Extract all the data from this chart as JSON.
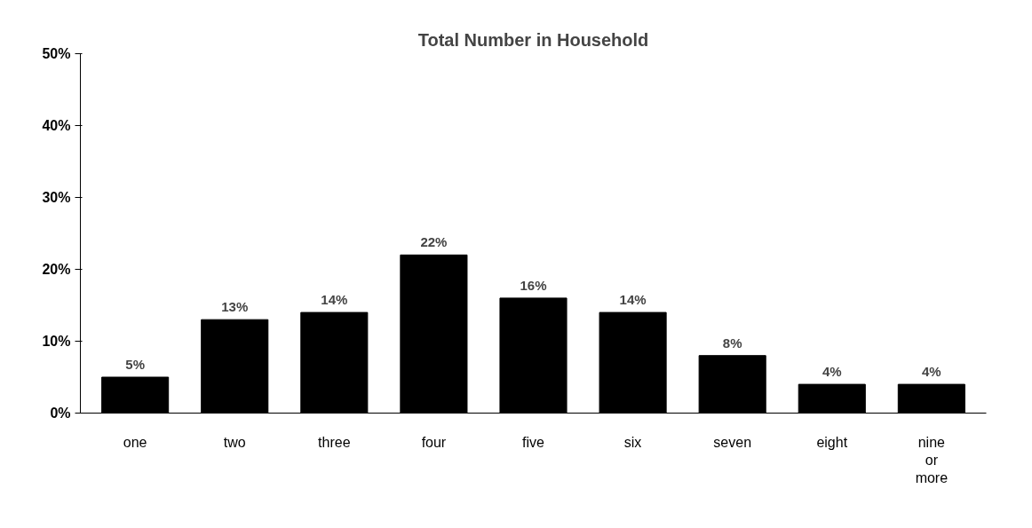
{
  "chart_data": {
    "type": "bar",
    "title": "Total Number in Household",
    "categories": [
      "one",
      "two",
      "three",
      "four",
      "five",
      "six",
      "seven",
      "eight",
      "nine or more"
    ],
    "values": [
      5,
      13,
      14,
      22,
      16,
      14,
      8,
      4,
      4
    ],
    "value_labels": [
      "5%",
      "13%",
      "14%",
      "22%",
      "16%",
      "14%",
      "8%",
      "4%",
      "4%"
    ],
    "color": "#000000",
    "ylim": [
      0,
      50
    ],
    "yticks": [
      {
        "value": 0,
        "label": "0%"
      },
      {
        "value": 10,
        "label": "10%"
      },
      {
        "value": 20,
        "label": "20%"
      },
      {
        "value": 30,
        "label": "30%"
      },
      {
        "value": 40,
        "label": "40%"
      },
      {
        "value": 50,
        "label": "50%"
      }
    ],
    "grid": false
  }
}
